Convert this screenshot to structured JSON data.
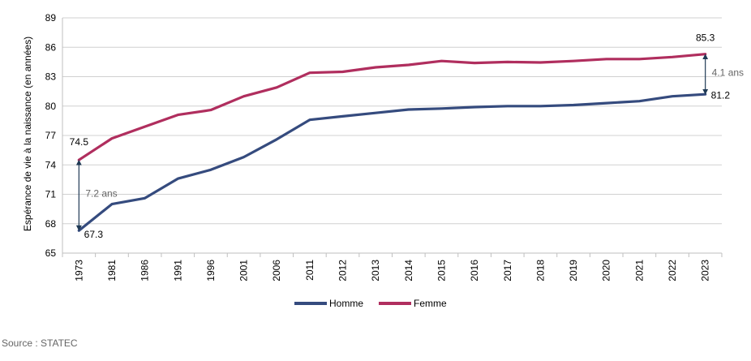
{
  "chart_data": {
    "type": "line",
    "title": "",
    "xlabel": "",
    "ylabel": "Espérance de vie à la naissance  (en années)",
    "ylim": [
      65,
      89
    ],
    "yticks": [
      65,
      68,
      71,
      74,
      77,
      80,
      83,
      86,
      89
    ],
    "categories": [
      "1973",
      "1981",
      "1986",
      "1991",
      "1996",
      "2001",
      "2006",
      "2011",
      "2012",
      "2013",
      "2014",
      "2015",
      "2016",
      "2017",
      "2018",
      "2019",
      "2020",
      "2021",
      "2022",
      "2023"
    ],
    "series": [
      {
        "name": "Homme",
        "color": "#354B7E",
        "values": [
          67.3,
          70.0,
          70.6,
          72.6,
          73.5,
          74.8,
          76.6,
          78.6,
          78.95,
          79.3,
          79.65,
          79.75,
          79.9,
          80.0,
          80.0,
          80.1,
          80.3,
          80.5,
          81.0,
          81.2
        ]
      },
      {
        "name": "Femme",
        "color": "#B02E5E",
        "values": [
          74.5,
          76.7,
          77.9,
          79.1,
          79.6,
          81.0,
          81.9,
          83.4,
          83.5,
          83.95,
          84.2,
          84.6,
          84.4,
          84.5,
          84.45,
          84.6,
          84.8,
          84.8,
          85.0,
          85.3
        ]
      }
    ],
    "data_labels": [
      {
        "series": "Femme",
        "index": 0,
        "text": "74.5"
      },
      {
        "series": "Homme",
        "index": 0,
        "text": "67.3"
      },
      {
        "series": "Femme",
        "index": 19,
        "text": "85.3"
      },
      {
        "series": "Homme",
        "index": 19,
        "text": "81.2"
      }
    ],
    "annotations": [
      {
        "index": 0,
        "text": "7.2 ans"
      },
      {
        "index": 19,
        "text": "4.1 ans"
      }
    ]
  },
  "source": "Source : STATEC"
}
